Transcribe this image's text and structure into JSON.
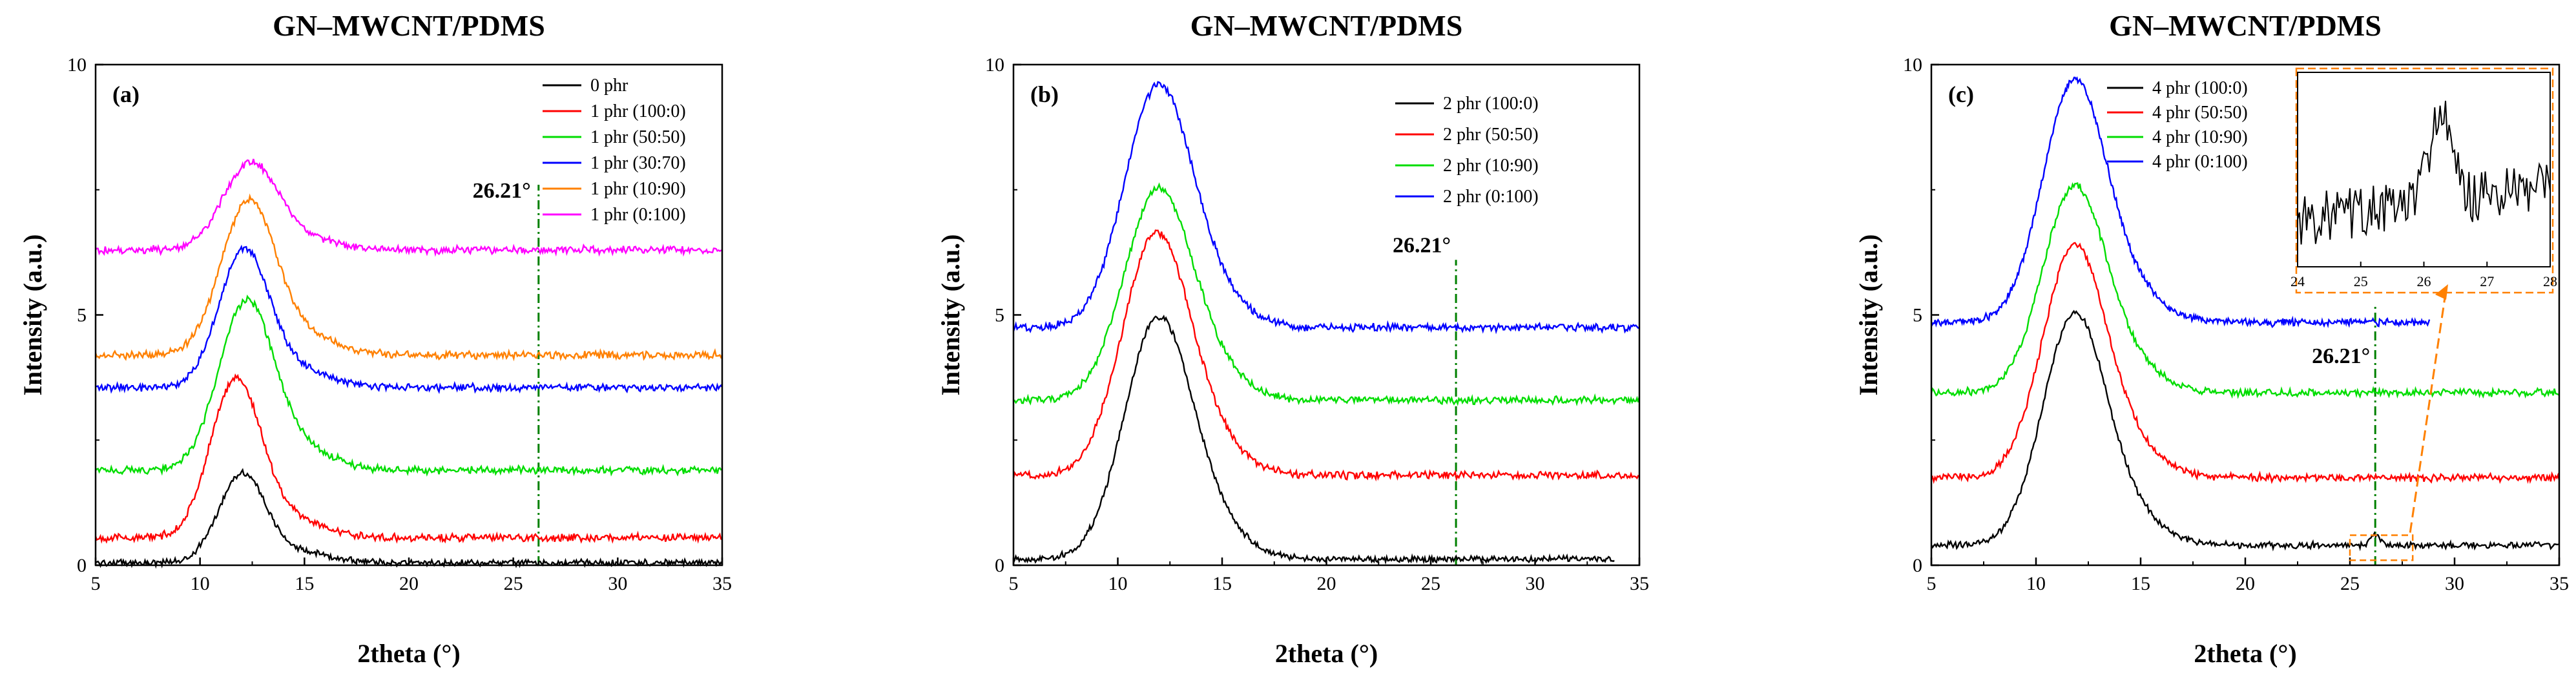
{
  "chart_data": [
    {
      "type": "line",
      "title": "GN–MWCNT/PDMS",
      "panel_label": "(a)",
      "xlabel": "2theta (°)",
      "ylabel": "Intensity (a.u.)",
      "xlim": [
        5,
        35
      ],
      "ylim": [
        0,
        10
      ],
      "xticks": [
        5,
        10,
        15,
        20,
        25,
        30,
        35
      ],
      "yticks": [
        0,
        5,
        10
      ],
      "annotation": {
        "label": "26.21°",
        "x": 26.21,
        "line_from": 0,
        "line_to": 7.6,
        "color": "#008000"
      },
      "series": [
        {
          "name": "0 phr",
          "color": "#000000",
          "baseline": 0.05,
          "peak_x": 12.0,
          "peak_height": 1.75,
          "peak_width": 1.1,
          "noise": 0.05
        },
        {
          "name": "1 phr (100:0)",
          "color": "#ff0000",
          "baseline": 0.55,
          "peak_x": 11.7,
          "peak_height": 3.1,
          "peak_width": 1.2,
          "noise": 0.06
        },
        {
          "name": "1 phr (50:50)",
          "color": "#00dd00",
          "baseline": 1.9,
          "peak_x": 12.2,
          "peak_height": 3.3,
          "peak_width": 1.3,
          "noise": 0.06
        },
        {
          "name": "1 phr (30:70)",
          "color": "#0000ff",
          "baseline": 3.55,
          "peak_x": 12.1,
          "peak_height": 2.7,
          "peak_width": 1.2,
          "noise": 0.06
        },
        {
          "name": "1 phr (10:90)",
          "color": "#ff8000",
          "baseline": 4.2,
          "peak_x": 12.3,
          "peak_height": 3.0,
          "peak_width": 1.3,
          "noise": 0.06
        },
        {
          "name": "1 phr (0:100)",
          "color": "#ff00ff",
          "baseline": 6.3,
          "peak_x": 12.4,
          "peak_height": 1.7,
          "peak_width": 1.3,
          "noise": 0.06
        }
      ]
    },
    {
      "type": "line",
      "title": "GN–MWCNT/PDMS",
      "panel_label": "(b)",
      "xlabel": "2theta (°)",
      "ylabel": "Intensity (a.u.)",
      "xlim": [
        5,
        35
      ],
      "ylim": [
        0,
        10
      ],
      "xticks": [
        5,
        10,
        15,
        20,
        25,
        30,
        35
      ],
      "yticks": [
        0,
        5,
        10
      ],
      "annotation": {
        "label": "26.21°",
        "x": 26.21,
        "line_from": 0,
        "line_to": 6.1,
        "color": "#008000"
      },
      "series": [
        {
          "name": "2 phr (100:0)",
          "color": "#000000",
          "baseline": 0.12,
          "peak_x": 11.9,
          "peak_height": 4.7,
          "peak_width": 1.6,
          "noise": 0.05
        },
        {
          "name": "2 phr (50:50)",
          "color": "#ff0000",
          "baseline": 1.8,
          "peak_x": 11.8,
          "peak_height": 4.7,
          "peak_width": 1.6,
          "noise": 0.06
        },
        {
          "name": "2 phr (10:90)",
          "color": "#00dd00",
          "baseline": 3.3,
          "peak_x": 11.9,
          "peak_height": 4.1,
          "peak_width": 1.6,
          "noise": 0.06
        },
        {
          "name": "2 phr (0:100)",
          "color": "#0000ff",
          "baseline": 4.75,
          "peak_x": 11.9,
          "peak_height": 4.7,
          "peak_width": 1.6,
          "noise": 0.06
        }
      ]
    },
    {
      "type": "line",
      "title": "GN–MWCNT/PDMS",
      "panel_label": "(c)",
      "xlabel": "2theta (°)",
      "ylabel": "Intensity (a.u.)",
      "xlim": [
        5,
        35
      ],
      "ylim": [
        0,
        10
      ],
      "xticks": [
        5,
        10,
        15,
        20,
        25,
        30,
        35
      ],
      "yticks": [
        0,
        5,
        10
      ],
      "annotation": {
        "label": "26.21°",
        "x": 26.21,
        "line_from": 0,
        "line_to": 5.2,
        "color": "#008000"
      },
      "series": [
        {
          "name": "4 phr (100:0)",
          "color": "#000000",
          "baseline": 0.4,
          "peak_x": 11.8,
          "peak_height": 4.5,
          "peak_width": 1.5,
          "noise": 0.05
        },
        {
          "name": "4 phr (50:50)",
          "color": "#ff0000",
          "baseline": 1.75,
          "peak_x": 11.8,
          "peak_height": 4.5,
          "peak_width": 1.5,
          "noise": 0.06
        },
        {
          "name": "4 phr (10:90)",
          "color": "#00dd00",
          "baseline": 3.45,
          "peak_x": 11.8,
          "peak_height": 4.0,
          "peak_width": 1.5,
          "noise": 0.06
        },
        {
          "name": "4 phr (0:100)",
          "color": "#0000ff",
          "baseline": 4.85,
          "peak_x": 11.8,
          "peak_height": 4.7,
          "peak_width": 1.5,
          "noise": 0.06
        }
      ],
      "inset": {
        "xlim": [
          24,
          28
        ],
        "xticks": [
          24,
          25,
          26,
          27,
          28
        ],
        "series_color": "#000000",
        "zoom_box_x": [
          25.0,
          28.0
        ],
        "zoom_box_y": [
          0.1,
          0.6
        ],
        "box_color": "#ff8000"
      }
    }
  ]
}
